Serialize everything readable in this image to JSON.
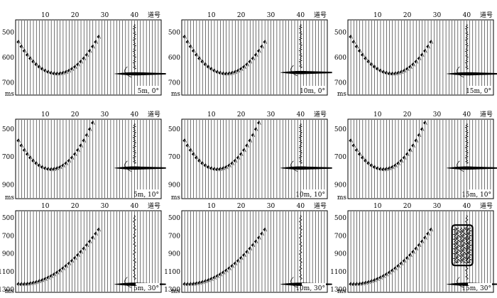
{
  "chart_data": {
    "type": "seismic-gather-grid",
    "x_axis_label": "道号",
    "y_axis_label": "ms",
    "x_ticks": [
      10,
      20,
      30,
      40
    ],
    "traces": 48,
    "panels": [
      {
        "label": "5m, 0°",
        "row": 0,
        "col": 0,
        "ylim": [
          450,
          750
        ],
        "y_ticks": [
          500,
          600,
          700
        ],
        "apex_trace": 14,
        "apex_time": 665,
        "curve_k": 0.75,
        "last_trace": 28,
        "event_time": 665
      },
      {
        "label": "10m, 0°",
        "row": 0,
        "col": 1,
        "ylim": [
          450,
          750
        ],
        "y_ticks": [
          500,
          600,
          700
        ],
        "apex_trace": 15,
        "apex_time": 665,
        "curve_k": 0.75,
        "last_trace": 28,
        "event_time": 660
      },
      {
        "label": "15m, 0°",
        "row": 0,
        "col": 2,
        "ylim": [
          450,
          750
        ],
        "y_ticks": [
          500,
          600,
          700
        ],
        "apex_trace": 15,
        "apex_time": 665,
        "curve_k": 0.75,
        "last_trace": 28,
        "event_time": 665
      },
      {
        "label": "5m, 10°",
        "row": 1,
        "col": 0,
        "ylim": [
          430,
          1000
        ],
        "y_ticks": [
          500,
          700,
          900
        ],
        "apex_trace": 12,
        "apex_time": 790,
        "curve_k": 1.7,
        "last_trace": 29,
        "event_time": 780
      },
      {
        "label": "10m, 10°",
        "row": 1,
        "col": 1,
        "ylim": [
          430,
          1000
        ],
        "y_ticks": [
          500,
          700,
          900
        ],
        "apex_trace": 12,
        "apex_time": 790,
        "curve_k": 1.7,
        "last_trace": 29,
        "event_time": 780
      },
      {
        "label": "15m, 10°",
        "row": 1,
        "col": 2,
        "ylim": [
          430,
          1000
        ],
        "y_ticks": [
          500,
          700,
          900
        ],
        "apex_trace": 12,
        "apex_time": 790,
        "curve_k": 1.7,
        "last_trace": 29,
        "event_time": 780
      },
      {
        "label": "5m, 30°",
        "row": 2,
        "col": 0,
        "ylim": [
          420,
          1330
        ],
        "y_ticks": [
          500,
          700,
          900,
          1100,
          1300
        ],
        "apex_trace": 2,
        "apex_time": 1240,
        "curve_k": 0.9,
        "last_trace": 28,
        "event_time": 1240
      },
      {
        "label": "10m, 30°",
        "row": 2,
        "col": 1,
        "ylim": [
          420,
          1330
        ],
        "y_ticks": [
          500,
          700,
          900,
          1100,
          1300
        ],
        "apex_trace": 2,
        "apex_time": 1240,
        "curve_k": 0.9,
        "last_trace": 28,
        "event_time": 1240
      },
      {
        "label": "15m, 30°",
        "row": 2,
        "col": 2,
        "ylim": [
          420,
          1330
        ],
        "y_ticks": [
          500,
          700,
          900,
          1100,
          1300
        ],
        "apex_trace": 2,
        "apex_time": 1240,
        "curve_k": 0.9,
        "last_trace": 28,
        "event_time": 1240,
        "highlight_box": {
          "x_range": [
            36,
            41
          ],
          "y_range": [
            580,
            1030
          ]
        }
      }
    ]
  }
}
